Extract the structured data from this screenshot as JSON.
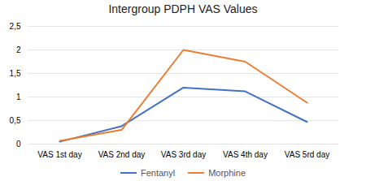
{
  "chart_data": {
    "type": "line",
    "title": "Intergroup PDPH VAS Values",
    "categories": [
      "VAS 1st day",
      "VAS 2nd day",
      "VAS 3rd day",
      "VAS 4th day",
      "VAS 5rd day"
    ],
    "series": [
      {
        "name": "Fentanyl",
        "color": "#4472C4",
        "values": [
          0.05,
          0.38,
          1.2,
          1.12,
          0.47
        ]
      },
      {
        "name": "Morphine",
        "color": "#ED7D31",
        "values": [
          0.07,
          0.3,
          2.0,
          1.75,
          0.88
        ]
      }
    ],
    "ylim": [
      0,
      2.5
    ],
    "yticks": [
      0,
      {
        "value": 0.5,
        "label": "0,5"
      },
      1,
      {
        "value": 1.5,
        "label": "1,5"
      },
      2,
      {
        "value": 2.5,
        "label": "2,5"
      }
    ],
    "grid": true,
    "legend": "bottom"
  }
}
